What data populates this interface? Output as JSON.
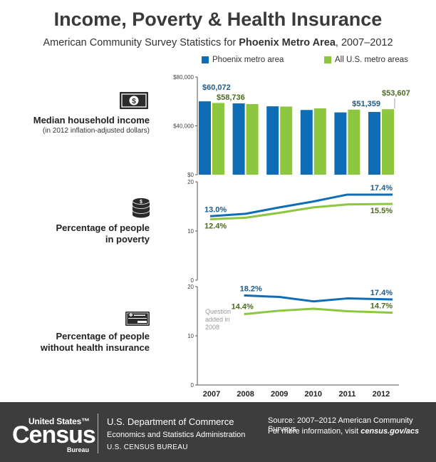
{
  "header": {
    "title": "Income, Poverty & Health Insurance",
    "subtitle_prefix": "American Community Survey Statistics for ",
    "subtitle_bold": "Phoenix Metro Area",
    "subtitle_suffix": ", 2007–2012"
  },
  "colors": {
    "phoenix": "#0f6db5",
    "us": "#8dc63f",
    "text_phoenix": "#1b5a8a",
    "text_us": "#4b6b1f",
    "axis": "#555555",
    "note": "#999999"
  },
  "icons": {
    "income": "dollar-bill-icon",
    "poverty": "coin-stack-icon",
    "insurance": "insurance-card-icon"
  },
  "panels": {
    "income": {
      "label": "Median household income",
      "sublabel": "(in 2012 inflation-adjusted dollars)"
    },
    "poverty": {
      "label_line1": "Percentage of people",
      "label_line2": "in poverty"
    },
    "insurance": {
      "label_line1": "Percentage of people",
      "label_line2": "without health insurance"
    }
  },
  "chart_data": [
    {
      "type": "bar",
      "categories": [
        "2007",
        "2008",
        "2009",
        "2010",
        "2011",
        "2012"
      ],
      "series": [
        {
          "name": "Phoenix metro area",
          "values": [
            60072,
            58400,
            56000,
            53000,
            51000,
            51359
          ]
        },
        {
          "name": "All U.S. metro areas",
          "values": [
            58736,
            57800,
            55800,
            54300,
            53300,
            53607
          ]
        }
      ],
      "ylim": [
        0,
        80000
      ],
      "ticks": [
        "$0",
        "$40,000",
        "$80,000"
      ],
      "data_labels": {
        "phoenix_first": "$60,072",
        "us_first": "$58,736",
        "phoenix_last": "$51,359",
        "us_last": "$53,607"
      }
    },
    {
      "type": "line",
      "categories": [
        "2007",
        "2008",
        "2009",
        "2010",
        "2011",
        "2012"
      ],
      "series": [
        {
          "name": "Phoenix metro area",
          "values": [
            13.0,
            13.5,
            14.8,
            16.0,
            17.4,
            17.4
          ]
        },
        {
          "name": "All U.S. metro areas",
          "values": [
            12.4,
            12.7,
            13.7,
            14.8,
            15.4,
            15.5
          ]
        }
      ],
      "ylim": [
        0,
        20
      ],
      "ticks": [
        "0",
        "10",
        "20"
      ],
      "data_labels": {
        "phoenix_first": "13.0%",
        "us_first": "12.4%",
        "phoenix_last": "17.4%",
        "us_last": "15.5%"
      }
    },
    {
      "type": "line",
      "categories": [
        "2008",
        "2009",
        "2010",
        "2011",
        "2012"
      ],
      "series": [
        {
          "name": "Phoenix metro area",
          "values": [
            18.2,
            17.9,
            17.0,
            17.6,
            17.4
          ]
        },
        {
          "name": "All U.S. metro areas",
          "values": [
            14.4,
            15.1,
            15.5,
            15.0,
            14.7
          ]
        }
      ],
      "ylim": [
        0,
        20
      ],
      "ticks": [
        "0",
        "10",
        "20"
      ],
      "data_labels": {
        "phoenix_first": "18.2%",
        "us_first": "14.4%",
        "phoenix_last": "17.4%",
        "us_last": "14.7%"
      },
      "annotation": [
        "Question",
        "added in",
        "2008"
      ]
    }
  ],
  "footer": {
    "logo_top": "United States™",
    "logo_main": "Census",
    "logo_sub": "Bureau",
    "dept_line1": "U.S. Department of Commerce",
    "dept_line2": "Economics and Statistics Administration",
    "dept_line3": "U.S. CENSUS BUREAU",
    "source_line1": "Source: 2007–2012 American Community Surveys",
    "source_line2_prefix": "For more information, visit ",
    "source_line2_link": "census.gov/acs"
  }
}
